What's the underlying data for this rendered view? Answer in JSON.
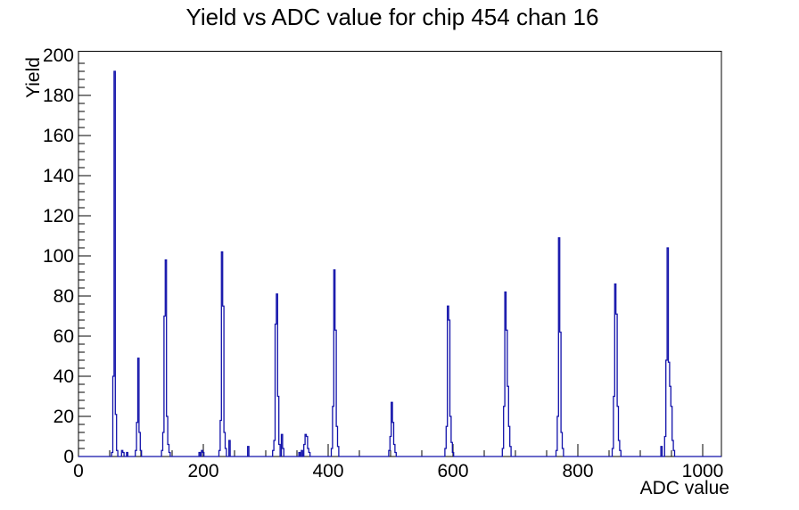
{
  "chart_data": {
    "type": "bar",
    "title": "Yield vs ADC value for chip 454 chan 16",
    "xlabel": "ADC value",
    "ylabel": "Yield",
    "xlim": [
      0,
      1030
    ],
    "ylim": [
      0,
      202
    ],
    "grid": false,
    "legend": "none",
    "x_tick_labels": [
      0,
      200,
      400,
      600,
      800,
      1000
    ],
    "x_minor_step": 50,
    "y_tick_labels": [
      0,
      20,
      40,
      60,
      80,
      100,
      120,
      140,
      160,
      180,
      200
    ],
    "y_minor_step": 4,
    "line_color": "#1111aa",
    "bin_width_adc": 2,
    "peaks_summary": [
      {
        "adc": 57,
        "yield": 192
      },
      {
        "adc": 95,
        "yield": 49
      },
      {
        "adc": 139,
        "yield": 98
      },
      {
        "adc": 229,
        "yield": 102
      },
      {
        "adc": 317,
        "yield": 81
      },
      {
        "adc": 363,
        "yield": 11
      },
      {
        "adc": 409,
        "yield": 93
      },
      {
        "adc": 501,
        "yield": 27
      },
      {
        "adc": 591,
        "yield": 75
      },
      {
        "adc": 683,
        "yield": 82
      },
      {
        "adc": 769,
        "yield": 109
      },
      {
        "adc": 859,
        "yield": 86
      },
      {
        "adc": 943,
        "yield": 104
      }
    ],
    "bins": [
      [
        53,
        2
      ],
      [
        55,
        40
      ],
      [
        57,
        192
      ],
      [
        59,
        21
      ],
      [
        61,
        3
      ],
      [
        69,
        3
      ],
      [
        71,
        2
      ],
      [
        77,
        2
      ],
      [
        91,
        3
      ],
      [
        93,
        17
      ],
      [
        95,
        49
      ],
      [
        97,
        12
      ],
      [
        99,
        3
      ],
      [
        133,
        3
      ],
      [
        135,
        12
      ],
      [
        137,
        70
      ],
      [
        139,
        98
      ],
      [
        141,
        20
      ],
      [
        143,
        6
      ],
      [
        145,
        2
      ],
      [
        193,
        2
      ],
      [
        197,
        3
      ],
      [
        199,
        2
      ],
      [
        225,
        3
      ],
      [
        227,
        18
      ],
      [
        229,
        102
      ],
      [
        231,
        75
      ],
      [
        233,
        12
      ],
      [
        235,
        4
      ],
      [
        241,
        8
      ],
      [
        271,
        5
      ],
      [
        311,
        3
      ],
      [
        313,
        8
      ],
      [
        315,
        66
      ],
      [
        317,
        81
      ],
      [
        319,
        30
      ],
      [
        321,
        6
      ],
      [
        325,
        11
      ],
      [
        327,
        4
      ],
      [
        353,
        2
      ],
      [
        357,
        3
      ],
      [
        361,
        6
      ],
      [
        363,
        11
      ],
      [
        365,
        10
      ],
      [
        367,
        4
      ],
      [
        369,
        2
      ],
      [
        405,
        4
      ],
      [
        407,
        25
      ],
      [
        409,
        93
      ],
      [
        411,
        63
      ],
      [
        413,
        15
      ],
      [
        415,
        5
      ],
      [
        497,
        3
      ],
      [
        499,
        10
      ],
      [
        501,
        27
      ],
      [
        503,
        17
      ],
      [
        505,
        6
      ],
      [
        507,
        2
      ],
      [
        587,
        4
      ],
      [
        589,
        15
      ],
      [
        591,
        75
      ],
      [
        593,
        68
      ],
      [
        595,
        20
      ],
      [
        597,
        7
      ],
      [
        599,
        2
      ],
      [
        679,
        4
      ],
      [
        681,
        25
      ],
      [
        683,
        82
      ],
      [
        685,
        63
      ],
      [
        687,
        35
      ],
      [
        689,
        15
      ],
      [
        691,
        5
      ],
      [
        765,
        3
      ],
      [
        767,
        20
      ],
      [
        769,
        109
      ],
      [
        771,
        62
      ],
      [
        773,
        12
      ],
      [
        775,
        4
      ],
      [
        855,
        4
      ],
      [
        857,
        30
      ],
      [
        859,
        86
      ],
      [
        861,
        71
      ],
      [
        863,
        25
      ],
      [
        865,
        8
      ],
      [
        867,
        3
      ],
      [
        933,
        5
      ],
      [
        939,
        10
      ],
      [
        941,
        48
      ],
      [
        943,
        104
      ],
      [
        945,
        47
      ],
      [
        947,
        35
      ],
      [
        949,
        25
      ],
      [
        951,
        8
      ],
      [
        953,
        3
      ]
    ]
  }
}
